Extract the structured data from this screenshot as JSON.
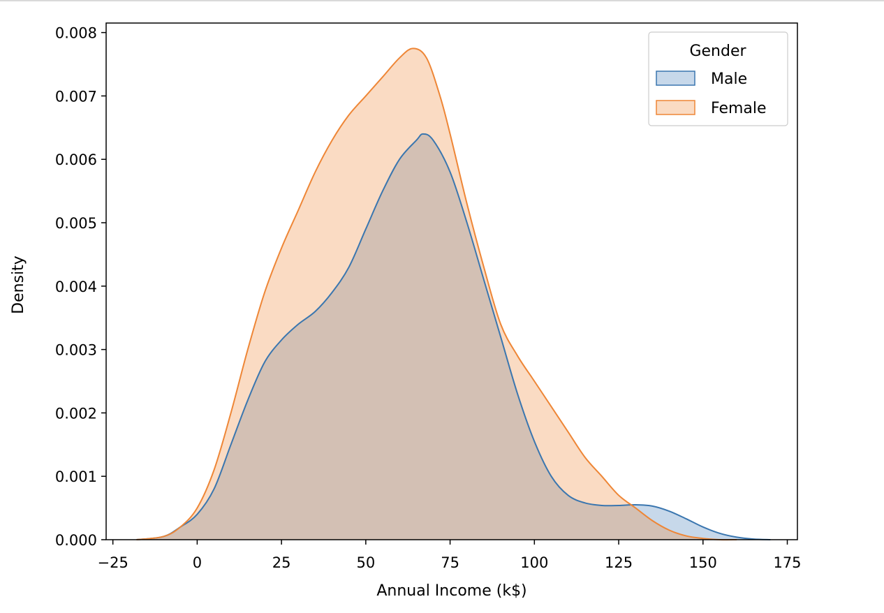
{
  "chart_data": {
    "type": "area",
    "xlabel": "Annual Income (k$)",
    "ylabel": "Density",
    "xlim": [
      -27,
      178
    ],
    "ylim": [
      0,
      0.00815
    ],
    "xticks": [
      -25,
      0,
      25,
      50,
      75,
      100,
      125,
      150,
      175
    ],
    "xtick_labels": [
      "−25",
      "0",
      "25",
      "50",
      "75",
      "100",
      "125",
      "150",
      "175"
    ],
    "yticks": [
      0,
      0.001,
      0.002,
      0.003,
      0.004,
      0.005,
      0.006,
      0.007,
      0.008
    ],
    "ytick_labels": [
      "0.000",
      "0.001",
      "0.002",
      "0.003",
      "0.004",
      "0.005",
      "0.006",
      "0.007",
      "0.008"
    ],
    "grid": false,
    "legend": {
      "title": "Gender",
      "placement": "top-right"
    },
    "series": [
      {
        "name": "Male",
        "color": "#3a76af",
        "fill": "rgba(69,127,186,0.30)",
        "x": [
          -18,
          -10,
          -5,
          0,
          5,
          10,
          15,
          20,
          25,
          30,
          35,
          40,
          45,
          50,
          55,
          60,
          65,
          67,
          70,
          75,
          80,
          85,
          90,
          95,
          100,
          105,
          110,
          115,
          120,
          125,
          130,
          135,
          140,
          145,
          150,
          155,
          160,
          165,
          170
        ],
        "y": [
          0.0,
          5e-05,
          0.0002,
          0.0004,
          0.0008,
          0.0015,
          0.0022,
          0.0028,
          0.00315,
          0.0034,
          0.0036,
          0.0039,
          0.0043,
          0.0049,
          0.0055,
          0.006,
          0.0063,
          0.0064,
          0.0063,
          0.0058,
          0.005,
          0.0041,
          0.0032,
          0.0023,
          0.00155,
          0.001,
          0.0007,
          0.00058,
          0.00054,
          0.00054,
          0.00055,
          0.00053,
          0.00045,
          0.00033,
          0.0002,
          0.0001,
          4e-05,
          1e-05,
          0.0
        ]
      },
      {
        "name": "Female",
        "color": "#ee8636",
        "fill": "rgba(240,135,55,0.30)",
        "x": [
          -18,
          -10,
          -5,
          0,
          5,
          10,
          15,
          20,
          25,
          30,
          35,
          40,
          45,
          50,
          55,
          60,
          64,
          68,
          72,
          75,
          80,
          85,
          90,
          95,
          100,
          105,
          110,
          115,
          120,
          125,
          130,
          135,
          140,
          145,
          150,
          155,
          160
        ],
        "y": [
          0.0,
          5e-05,
          0.0002,
          0.0005,
          0.0011,
          0.002,
          0.003,
          0.0039,
          0.0046,
          0.0052,
          0.0058,
          0.0063,
          0.0067,
          0.007,
          0.0073,
          0.0076,
          0.00775,
          0.0076,
          0.007,
          0.0064,
          0.0053,
          0.0043,
          0.0034,
          0.0029,
          0.0025,
          0.0021,
          0.0017,
          0.0013,
          0.001,
          0.0007,
          0.0005,
          0.0003,
          0.00015,
          6e-05,
          2e-05,
          0.0,
          0.0
        ]
      }
    ]
  }
}
